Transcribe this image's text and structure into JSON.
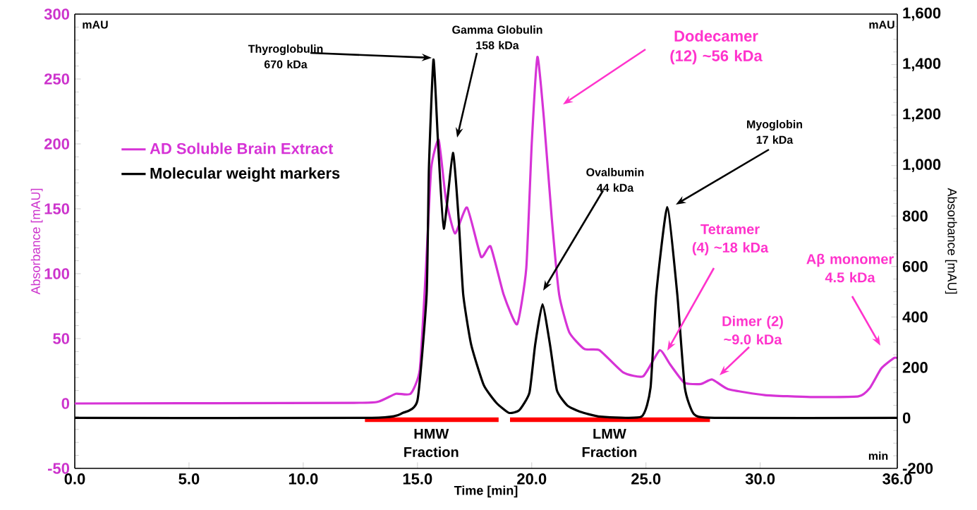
{
  "chart_data": {
    "type": "line",
    "xlabel": "Time [min]",
    "ylabel": "Absorbance [mAU]",
    "y2label": "Absorbance [mAU]",
    "xlim": [
      0,
      36
    ],
    "ylim": [
      -50,
      300
    ],
    "y2lim": [
      -200,
      1600
    ],
    "xticks": [
      {
        "value": 0,
        "label": "0.0"
      },
      {
        "value": 5,
        "label": "5.0"
      },
      {
        "value": 10,
        "label": "10.0"
      },
      {
        "value": 15,
        "label": "15.0"
      },
      {
        "value": 20,
        "label": "20.0"
      },
      {
        "value": 25,
        "label": "25.0"
      },
      {
        "value": 30,
        "label": "30.0"
      },
      {
        "value": 36,
        "label": "36.0"
      }
    ],
    "yticks": [
      -50,
      0,
      50,
      100,
      150,
      200,
      250,
      300
    ],
    "y2ticks": [
      -200,
      0,
      200,
      400,
      600,
      800,
      {
        "value": 1000,
        "label": "1,000"
      },
      {
        "value": 1200,
        "label": "1,200"
      },
      {
        "value": 1400,
        "label": "1,400"
      },
      {
        "value": 1600,
        "label": "1,600"
      }
    ],
    "legend": "top left",
    "marker": "none",
    "line_style": "solid",
    "grid": false,
    "series": [
      {
        "name": "AD Soluble Brain Extract",
        "color": "#d633d6",
        "x": [
          0,
          12.2,
          13.3,
          14.05,
          14.7,
          15.1,
          15.37,
          15.6,
          15.93,
          16.24,
          16.64,
          17.17,
          17.78,
          18.2,
          18.77,
          19.36,
          19.76,
          20.0,
          20.25,
          20.53,
          20.88,
          21.2,
          21.64,
          22.3,
          22.97,
          24.0,
          24.88,
          25.6,
          26.06,
          26.68,
          27.4,
          27.9,
          28.6,
          30.2,
          32.2,
          34.3,
          34.8,
          35.3,
          35.85,
          36.0
        ],
        "values": [
          0,
          0.5,
          1.5,
          7.5,
          7.5,
          26,
          104,
          181,
          203,
          158,
          131,
          151,
          113,
          121,
          84,
          61,
          104,
          200,
          267,
          220,
          142,
          84,
          55,
          42,
          41,
          24,
          21,
          41,
          30,
          16,
          15,
          18.5,
          11,
          6.5,
          5,
          5.5,
          12,
          27,
          35,
          35
        ]
      },
      {
        "name": "Molecular  weight markers",
        "color": "#000000",
        "axis": "y2",
        "x": [
          0,
          13.0,
          14.36,
          15.0,
          15.4,
          15.5,
          15.7,
          15.9,
          16.15,
          16.55,
          16.8,
          17.0,
          17.35,
          17.9,
          18.45,
          19.0,
          19.45,
          19.9,
          20.15,
          20.47,
          20.8,
          21.1,
          21.55,
          22.1,
          23.0,
          24.8,
          25.2,
          25.45,
          25.93,
          26.37,
          26.7,
          27.1,
          28.0,
          36.0
        ],
        "values": [
          0,
          0,
          20,
          70,
          490,
          990,
          1420,
          1090,
          750,
          1050,
          790,
          490,
          290,
          130,
          60,
          20,
          30,
          100,
          290,
          450,
          290,
          110,
          50,
          25,
          5,
          5,
          120,
          490,
          835,
          490,
          120,
          15,
          0,
          0
        ]
      },
      {
        "color": "#ff0000",
        "x": [
          12.7,
          18.55
        ],
        "values": [
          -12.5,
          -12.5
        ]
      },
      {
        "color": "#ff0000",
        "x": [
          19.05,
          27.8
        ],
        "values": [
          -12.5,
          -12.5
        ]
      }
    ],
    "annotations": [
      "mAU",
      "mAU",
      "min",
      "Thyroglobulin 670 kDa",
      "Gamma Globulin 158 kDa",
      "Dodecamer (12) ~56 kDa",
      "Ovalbumin 44 kDa",
      "Myoglobin 17 kDa",
      "Tetramer (4) ~18 kDa",
      "Dimer (2) ~9.0 kDa",
      "Aβ monomer 4.5 kDa",
      {
        "text": "HMW Fraction",
        "x": 15.6,
        "y": -12.5
      },
      {
        "text": "LMW Fraction",
        "x": 23.4,
        "y": -12.5
      }
    ]
  }
}
